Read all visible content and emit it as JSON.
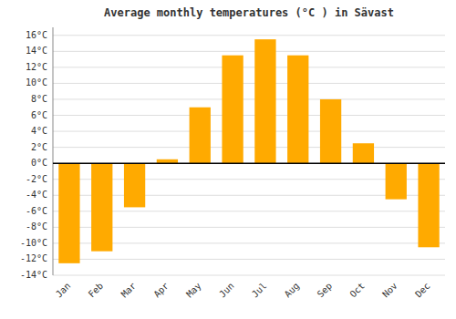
{
  "chart_data": {
    "type": "bar",
    "title": "Average monthly temperatures (°C ) in Sävast",
    "categories": [
      "Jan",
      "Feb",
      "Mar",
      "Apr",
      "May",
      "Jun",
      "Jul",
      "Aug",
      "Sep",
      "Oct",
      "Nov",
      "Dec"
    ],
    "values": [
      -12.5,
      -11.0,
      -5.5,
      0.5,
      7.0,
      13.5,
      15.5,
      13.5,
      8.0,
      2.5,
      -4.5,
      -10.5
    ],
    "color": "#FFAA00",
    "ylim": [
      -14,
      17
    ],
    "yticks": [
      {
        "value": -14,
        "label": "-14°C"
      },
      {
        "value": -12,
        "label": "-12°C"
      },
      {
        "value": -10,
        "label": "-10°C"
      },
      {
        "value": -8,
        "label": "-8°C"
      },
      {
        "value": -6,
        "label": "-6°C"
      },
      {
        "value": -4,
        "label": "-4°C"
      },
      {
        "value": -2,
        "label": "-2°C"
      },
      {
        "value": 0,
        "label": "0°C"
      },
      {
        "value": 2,
        "label": "2°C"
      },
      {
        "value": 4,
        "label": "4°C"
      },
      {
        "value": 6,
        "label": "6°C"
      },
      {
        "value": 8,
        "label": "8°C"
      },
      {
        "value": 10,
        "label": "10°C"
      },
      {
        "value": 12,
        "label": "12°C"
      },
      {
        "value": 14,
        "label": "14°C"
      },
      {
        "value": 16,
        "label": "16°C"
      }
    ],
    "grid": true
  }
}
